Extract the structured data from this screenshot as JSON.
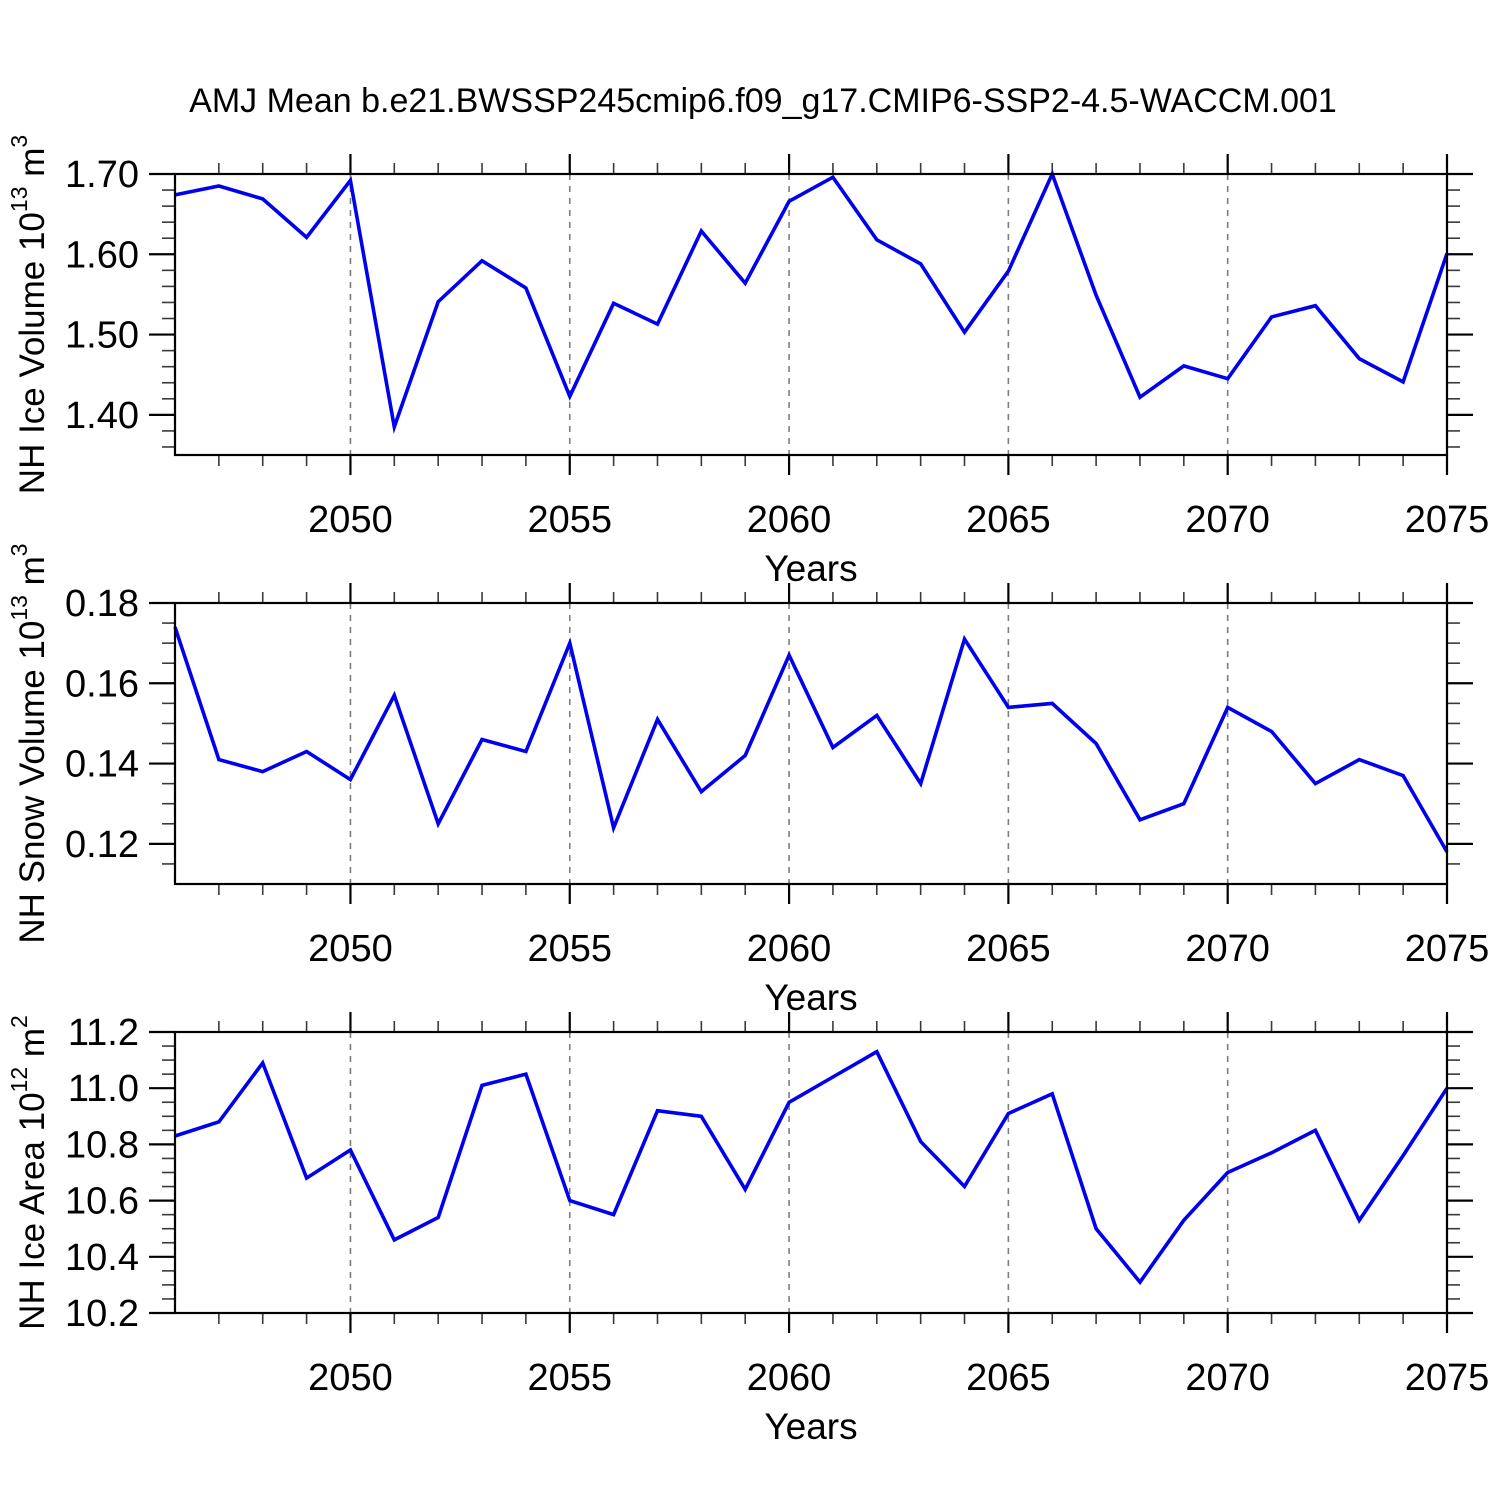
{
  "title": "AMJ Mean b.e21.BWSSP245cmip6.f09_g17.CMIP6-SSP2-4.5-WACCM.001",
  "colors": {
    "line": "#0000EE",
    "grid_dash": "#7d7d7d",
    "axis": "#000000",
    "minor_tick": "#3a3a3a",
    "background": "#ffffff"
  },
  "xlabel": "Years",
  "chart_data": [
    {
      "id": "nh-ice-volume",
      "type": "line",
      "ylabel_plain": "NH Ice Volume 10^13 m^3",
      "ylabel_parts": [
        {
          "t": "NH Ice Volume 10"
        },
        {
          "t": "13",
          "sup": true
        },
        {
          "t": " m"
        },
        {
          "t": "3",
          "sup": true
        }
      ],
      "xlabel": "Years",
      "x": [
        2046,
        2047,
        2048,
        2049,
        2050,
        2051,
        2052,
        2053,
        2054,
        2055,
        2056,
        2057,
        2058,
        2059,
        2060,
        2061,
        2062,
        2063,
        2064,
        2065,
        2066,
        2067,
        2068,
        2069,
        2070,
        2071,
        2072,
        2073,
        2074,
        2075
      ],
      "values": [
        1.674,
        1.685,
        1.669,
        1.621,
        1.692,
        1.385,
        1.541,
        1.592,
        1.558,
        1.423,
        1.539,
        1.513,
        1.629,
        1.564,
        1.666,
        1.696,
        1.618,
        1.588,
        1.503,
        1.579,
        1.7,
        1.549,
        1.422,
        1.461,
        1.445,
        1.522,
        1.536,
        1.47,
        1.441,
        1.601
      ],
      "xlim": [
        2046,
        2075
      ],
      "ylim": [
        1.35,
        1.7
      ],
      "yticks_major": [
        1.4,
        1.5,
        1.6,
        1.7
      ],
      "ytick_labels": [
        "1.40",
        "1.50",
        "1.60",
        "1.70"
      ],
      "yminor_step": 0.02,
      "xticks_major": [
        2050,
        2055,
        2060,
        2065,
        2070,
        2075
      ],
      "xtick_labels": [
        "2050",
        "2055",
        "2060",
        "2065",
        "2070",
        "2075"
      ],
      "grid_x": [
        2050,
        2055,
        2060,
        2065,
        2070
      ],
      "grid": "vertical-dashed"
    },
    {
      "id": "nh-snow-volume",
      "type": "line",
      "ylabel_plain": "NH Snow Volume 10^13 m^3",
      "ylabel_parts": [
        {
          "t": "NH Snow Volume 10"
        },
        {
          "t": "13",
          "sup": true
        },
        {
          "t": " m"
        },
        {
          "t": "3",
          "sup": true
        }
      ],
      "xlabel": "Years",
      "x": [
        2046,
        2047,
        2048,
        2049,
        2050,
        2051,
        2052,
        2053,
        2054,
        2055,
        2056,
        2057,
        2058,
        2059,
        2060,
        2061,
        2062,
        2063,
        2064,
        2065,
        2066,
        2067,
        2068,
        2069,
        2070,
        2071,
        2072,
        2073,
        2074,
        2075
      ],
      "values": [
        0.174,
        0.141,
        0.138,
        0.143,
        0.136,
        0.157,
        0.125,
        0.146,
        0.143,
        0.17,
        0.124,
        0.151,
        0.133,
        0.142,
        0.167,
        0.144,
        0.152,
        0.135,
        0.171,
        0.154,
        0.155,
        0.145,
        0.126,
        0.13,
        0.154,
        0.148,
        0.135,
        0.141,
        0.137,
        0.118
      ],
      "xlim": [
        2046,
        2075
      ],
      "ylim": [
        0.11,
        0.18
      ],
      "yticks_major": [
        0.12,
        0.14,
        0.16,
        0.18
      ],
      "ytick_labels": [
        "0.12",
        "0.14",
        "0.16",
        "0.18"
      ],
      "yminor_step": 0.005,
      "xticks_major": [
        2050,
        2055,
        2060,
        2065,
        2070,
        2075
      ],
      "xtick_labels": [
        "2050",
        "2055",
        "2060",
        "2065",
        "2070",
        "2075"
      ],
      "grid_x": [
        2050,
        2055,
        2060,
        2065,
        2070
      ],
      "grid": "vertical-dashed"
    },
    {
      "id": "nh-ice-area",
      "type": "line",
      "ylabel_plain": "NH Ice Area 10^12 m^2",
      "ylabel_parts": [
        {
          "t": "NH Ice Area 10"
        },
        {
          "t": "12",
          "sup": true
        },
        {
          "t": " m"
        },
        {
          "t": "2",
          "sup": true
        }
      ],
      "xlabel": "Years",
      "x": [
        2046,
        2047,
        2048,
        2049,
        2050,
        2051,
        2052,
        2053,
        2054,
        2055,
        2056,
        2057,
        2058,
        2059,
        2060,
        2061,
        2062,
        2063,
        2064,
        2065,
        2066,
        2067,
        2068,
        2069,
        2070,
        2071,
        2072,
        2073,
        2074,
        2075
      ],
      "values": [
        10.83,
        10.88,
        11.09,
        10.68,
        10.78,
        10.46,
        10.54,
        11.01,
        11.05,
        10.6,
        10.55,
        10.92,
        10.9,
        10.64,
        10.95,
        11.04,
        11.13,
        10.81,
        10.65,
        10.91,
        10.98,
        10.5,
        10.31,
        10.53,
        10.7,
        10.77,
        10.85,
        10.53,
        10.76,
        11.0
      ],
      "xlim": [
        2046,
        2075
      ],
      "ylim": [
        10.2,
        11.2
      ],
      "yticks_major": [
        10.2,
        10.4,
        10.6,
        10.8,
        11.0,
        11.2
      ],
      "ytick_labels": [
        "10.2",
        "10.4",
        "10.6",
        "10.8",
        "11.0",
        "11.2"
      ],
      "yminor_step": 0.05,
      "xticks_major": [
        2050,
        2055,
        2060,
        2065,
        2070,
        2075
      ],
      "xtick_labels": [
        "2050",
        "2055",
        "2060",
        "2065",
        "2070",
        "2075"
      ],
      "grid_x": [
        2050,
        2055,
        2060,
        2065,
        2070
      ],
      "grid": "vertical-dashed"
    }
  ]
}
